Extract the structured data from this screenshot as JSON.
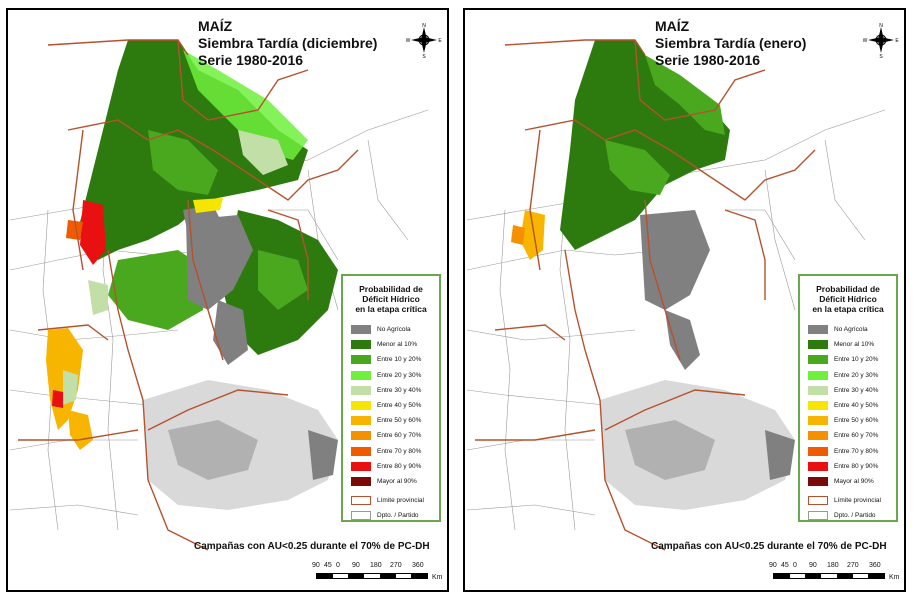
{
  "panels": [
    {
      "id": "left",
      "title_line1": "MAÍZ",
      "title_line2": "Siembra Tardía (diciembre)",
      "title_line3": "Serie 1980-2016"
    },
    {
      "id": "right",
      "title_line1": "MAÍZ",
      "title_line2": "Siembra Tardía (enero)",
      "title_line3": "Serie 1980-2016"
    }
  ],
  "legend": {
    "title_line1": "Probabilidad de",
    "title_line2": "Déficit Hídrico",
    "title_line3": "en la etapa crítica",
    "items": [
      {
        "label": "No Agrícola",
        "color": "#808080"
      },
      {
        "label": "Menor al 10%",
        "color": "#2d7a0f"
      },
      {
        "label": "Entre 10 y 20%",
        "color": "#4aa81e"
      },
      {
        "label": "Entre 20 y 30%",
        "color": "#6ef03c"
      },
      {
        "label": "Entre 30 y 40%",
        "color": "#c2dfa8"
      },
      {
        "label": "Entre 40 y 50%",
        "color": "#f5e500"
      },
      {
        "label": "Entre 50 y 60%",
        "color": "#f7b500"
      },
      {
        "label": "Entre 60 y 70%",
        "color": "#f59000"
      },
      {
        "label": "Entre 70 y 80%",
        "color": "#f05a00"
      },
      {
        "label": "Entre 80 y 90%",
        "color": "#e81010"
      },
      {
        "label": "Mayor al 90%",
        "color": "#7a0a0a"
      }
    ],
    "boundaries": [
      {
        "label": "Límite provincial",
        "color": "#b5522d"
      },
      {
        "label": "Dpto. / Partido",
        "color": "#9a9a9a"
      }
    ]
  },
  "caption": "Campañas con AU<0.25 durante el 70% de PC-DH",
  "scale": {
    "labels": [
      "90",
      "45",
      "0",
      "90",
      "180",
      "270",
      "360"
    ],
    "unit": "Km"
  },
  "compass": {
    "n": "N",
    "s": "S",
    "e": "E",
    "w": "W"
  },
  "colors": {
    "province_border": "#b5522d",
    "district_border": "#a0a0a0",
    "legend_border": "#6aa84f"
  }
}
